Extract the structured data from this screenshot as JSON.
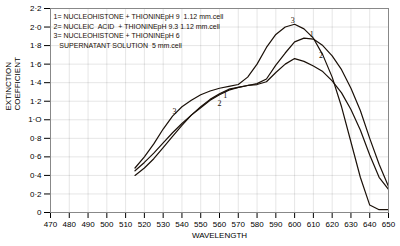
{
  "chart_data": {
    "type": "line",
    "xlabel": "WAVELENGTH",
    "ylabel": "EXTINCTION\nCOEFFICIENT",
    "color": "#1a1008",
    "grid": true,
    "xlim": [
      470,
      650
    ],
    "ylim": [
      0,
      2.2
    ],
    "xticks": [
      470,
      480,
      490,
      500,
      510,
      520,
      530,
      540,
      550,
      560,
      570,
      580,
      590,
      600,
      610,
      620,
      630,
      640,
      650
    ],
    "yticks": [
      0,
      {
        "value": 0.2,
        "label": "0·2"
      },
      {
        "value": 0.4,
        "label": "0·4"
      },
      {
        "value": 0.6,
        "label": "0·6"
      },
      {
        "value": 0.8,
        "label": "0·8"
      },
      {
        "value": 1.0,
        "label": "1·O"
      },
      {
        "value": 1.2,
        "label": "1·2"
      },
      {
        "value": 1.4,
        "label": "1·4"
      },
      {
        "value": 1.6,
        "label": "1·6"
      },
      {
        "value": 1.8,
        "label": "1·8"
      },
      {
        "value": 2.0,
        "label": "2·0"
      },
      {
        "value": 2.2,
        "label": "2·2"
      }
    ],
    "x": [
      515,
      520,
      525,
      530,
      535,
      540,
      545,
      550,
      555,
      560,
      565,
      570,
      575,
      580,
      585,
      590,
      595,
      600,
      605,
      610,
      615,
      620,
      625,
      630,
      635,
      640,
      645,
      650
    ],
    "series": [
      {
        "values": [
          0.45,
          0.54,
          0.64,
          0.75,
          0.86,
          0.96,
          1.05,
          1.13,
          1.21,
          1.27,
          1.32,
          1.35,
          1.37,
          1.39,
          1.44,
          1.59,
          1.72,
          1.84,
          1.88,
          1.87,
          1.8,
          1.69,
          1.54,
          1.34,
          1.1,
          0.8,
          0.52,
          0.28
        ]
      },
      {
        "values": [
          0.4,
          0.48,
          0.58,
          0.7,
          0.82,
          0.94,
          1.05,
          1.14,
          1.22,
          1.28,
          1.33,
          1.35,
          1.37,
          1.38,
          1.41,
          1.51,
          1.6,
          1.66,
          1.63,
          1.58,
          1.52,
          1.42,
          1.29,
          1.11,
          0.89,
          0.62,
          0.38,
          0.25
        ]
      },
      {
        "values": [
          0.48,
          0.6,
          0.74,
          0.9,
          1.04,
          1.14,
          1.21,
          1.27,
          1.31,
          1.34,
          1.36,
          1.38,
          1.46,
          1.6,
          1.78,
          1.92,
          2.0,
          2.03,
          1.98,
          1.88,
          1.7,
          1.46,
          1.14,
          0.76,
          0.38,
          0.08,
          0.03,
          0.03
        ]
      }
    ],
    "annotations": [
      {
        "text": "1",
        "x": 562,
        "y": 1.24
      },
      {
        "text": "2",
        "x": 559,
        "y": 1.15
      },
      {
        "text": "3",
        "x": 535,
        "y": 1.06
      },
      {
        "text": "3",
        "x": 598,
        "y": 2.04
      },
      {
        "text": "1",
        "x": 608,
        "y": 1.89
      },
      {
        "text": "2",
        "x": 613,
        "y": 1.67
      },
      {
        "text": "1= NUCLEOHISTONE + THIONINEpH 9  1.12 mm.cell"
      },
      {
        "text": "2= NUCLEIC  ACID  + THIONINEpH 9.3 1.12 mm.cell"
      },
      {
        "text": "3= NUCLEOHISTONE + THIONINEpH 6"
      },
      {
        "text": "   SUPERNATANT SOLUTION  5 mm.cell"
      }
    ]
  }
}
